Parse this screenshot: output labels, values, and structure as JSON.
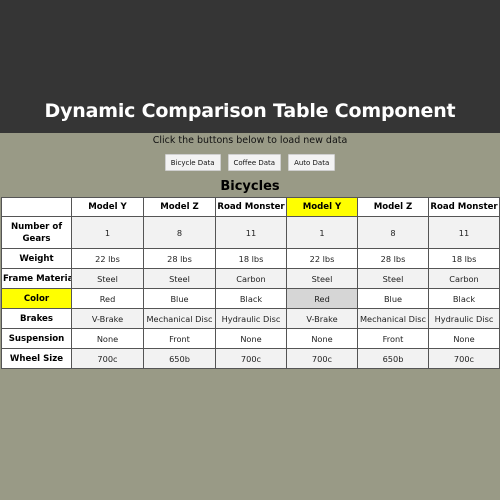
{
  "header": {
    "title": "Dynamic Comparison Table Component"
  },
  "subtitle": "Click the buttons below to load new data",
  "buttons": {
    "bicycle": "Bicycle Data",
    "coffee": "Coffee Data",
    "auto": "Auto Data"
  },
  "table": {
    "title": "Bicycles",
    "columns": [
      "Model Y",
      "Model Z",
      "Road Monster",
      "Model Y",
      "Model Z",
      "Road Monster"
    ],
    "rows": [
      {
        "label": "Number of Gears",
        "values": [
          "1",
          "8",
          "11",
          "1",
          "8",
          "11"
        ]
      },
      {
        "label": "Weight",
        "values": [
          "22 lbs",
          "28 lbs",
          "18 lbs",
          "22 lbs",
          "28 lbs",
          "18 lbs"
        ]
      },
      {
        "label": "Frame Material",
        "values": [
          "Steel",
          "Steel",
          "Carbon",
          "Steel",
          "Steel",
          "Carbon"
        ]
      },
      {
        "label": "Color",
        "values": [
          "Red",
          "Blue",
          "Black",
          "Red",
          "Blue",
          "Black"
        ]
      },
      {
        "label": "Brakes",
        "values": [
          "V-Brake",
          "Mechanical Disc",
          "Hydraulic Disc",
          "V-Brake",
          "Mechanical Disc",
          "Hydraulic Disc"
        ]
      },
      {
        "label": "Suspension",
        "values": [
          "None",
          "Front",
          "None",
          "None",
          "Front",
          "None"
        ]
      },
      {
        "label": "Wheel Size",
        "values": [
          "700c",
          "650b",
          "700c",
          "700c",
          "650b",
          "700c"
        ]
      }
    ]
  },
  "colors": {
    "header_bg": "#353535",
    "page_bg": "#999a86",
    "highlight": "#ffff00",
    "selected_cell": "#d6d6d6"
  }
}
